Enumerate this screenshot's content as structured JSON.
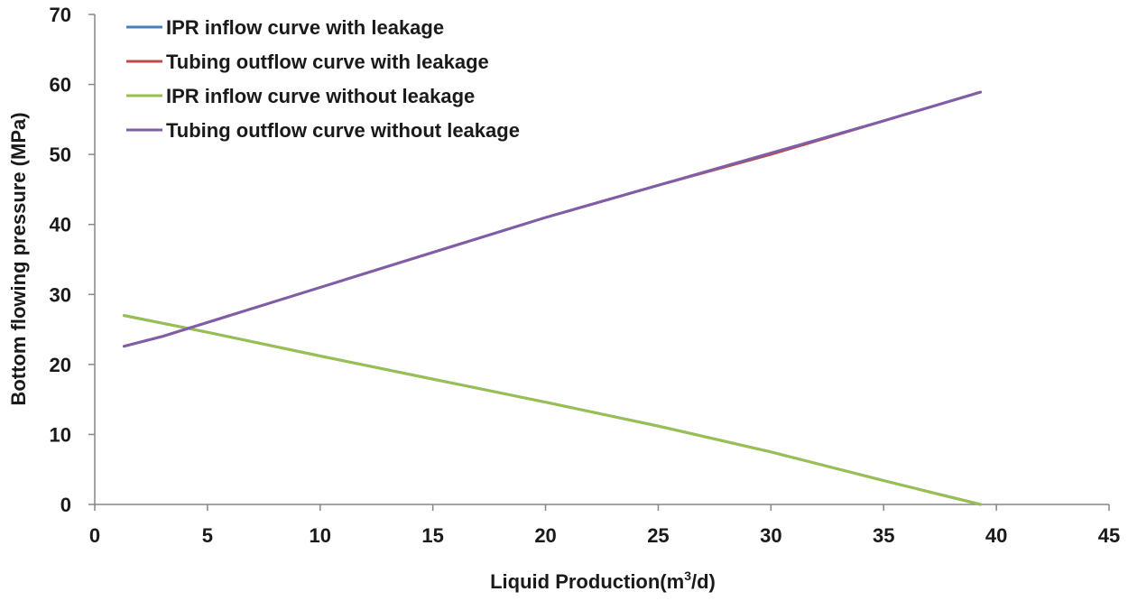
{
  "chart_data": {
    "type": "line",
    "title": "",
    "xlabel": "Liquid Production(m",
    "xlabel_sup": "3",
    "xlabel_tail": "/d)",
    "ylabel": "Bottom flowing pressure (MPa)",
    "xlim": [
      0,
      45
    ],
    "ylim": [
      0,
      70
    ],
    "xticks": [
      0,
      5,
      10,
      15,
      20,
      25,
      30,
      35,
      40,
      45
    ],
    "yticks": [
      0,
      10,
      20,
      30,
      40,
      50,
      60,
      70
    ],
    "grid": false,
    "legend_position": "top-left",
    "series": [
      {
        "name": "IPR inflow curve with leakage",
        "color": "#4a7ebb",
        "x": [
          1.3,
          5,
          10,
          15,
          20,
          25,
          30,
          35,
          39.3
        ],
        "y": [
          27.0,
          24.6,
          21.2,
          17.9,
          14.6,
          11.2,
          7.5,
          3.4,
          0.0
        ]
      },
      {
        "name": "Tubing outflow curve with leakage",
        "color": "#be4b48",
        "x": [
          1.3,
          3,
          5,
          10,
          15,
          20,
          25,
          30,
          35,
          39.3
        ],
        "y": [
          22.6,
          24.0,
          26.0,
          31.0,
          36.0,
          41.0,
          45.6,
          50.0,
          54.8,
          58.9
        ]
      },
      {
        "name": "IPR inflow curve without leakage",
        "color": "#98c04e",
        "x": [
          1.3,
          5,
          10,
          15,
          20,
          25,
          30,
          35,
          39.3
        ],
        "y": [
          27.0,
          24.6,
          21.2,
          17.9,
          14.6,
          11.2,
          7.5,
          3.4,
          0.0
        ]
      },
      {
        "name": "Tubing outflow curve without leakage",
        "color": "#7e5ea8",
        "x": [
          1.3,
          3,
          5,
          10,
          15,
          20,
          25,
          30,
          35,
          39.3
        ],
        "y": [
          22.6,
          24.0,
          26.0,
          31.0,
          36.0,
          41.0,
          45.6,
          50.2,
          54.8,
          58.9
        ]
      }
    ]
  }
}
